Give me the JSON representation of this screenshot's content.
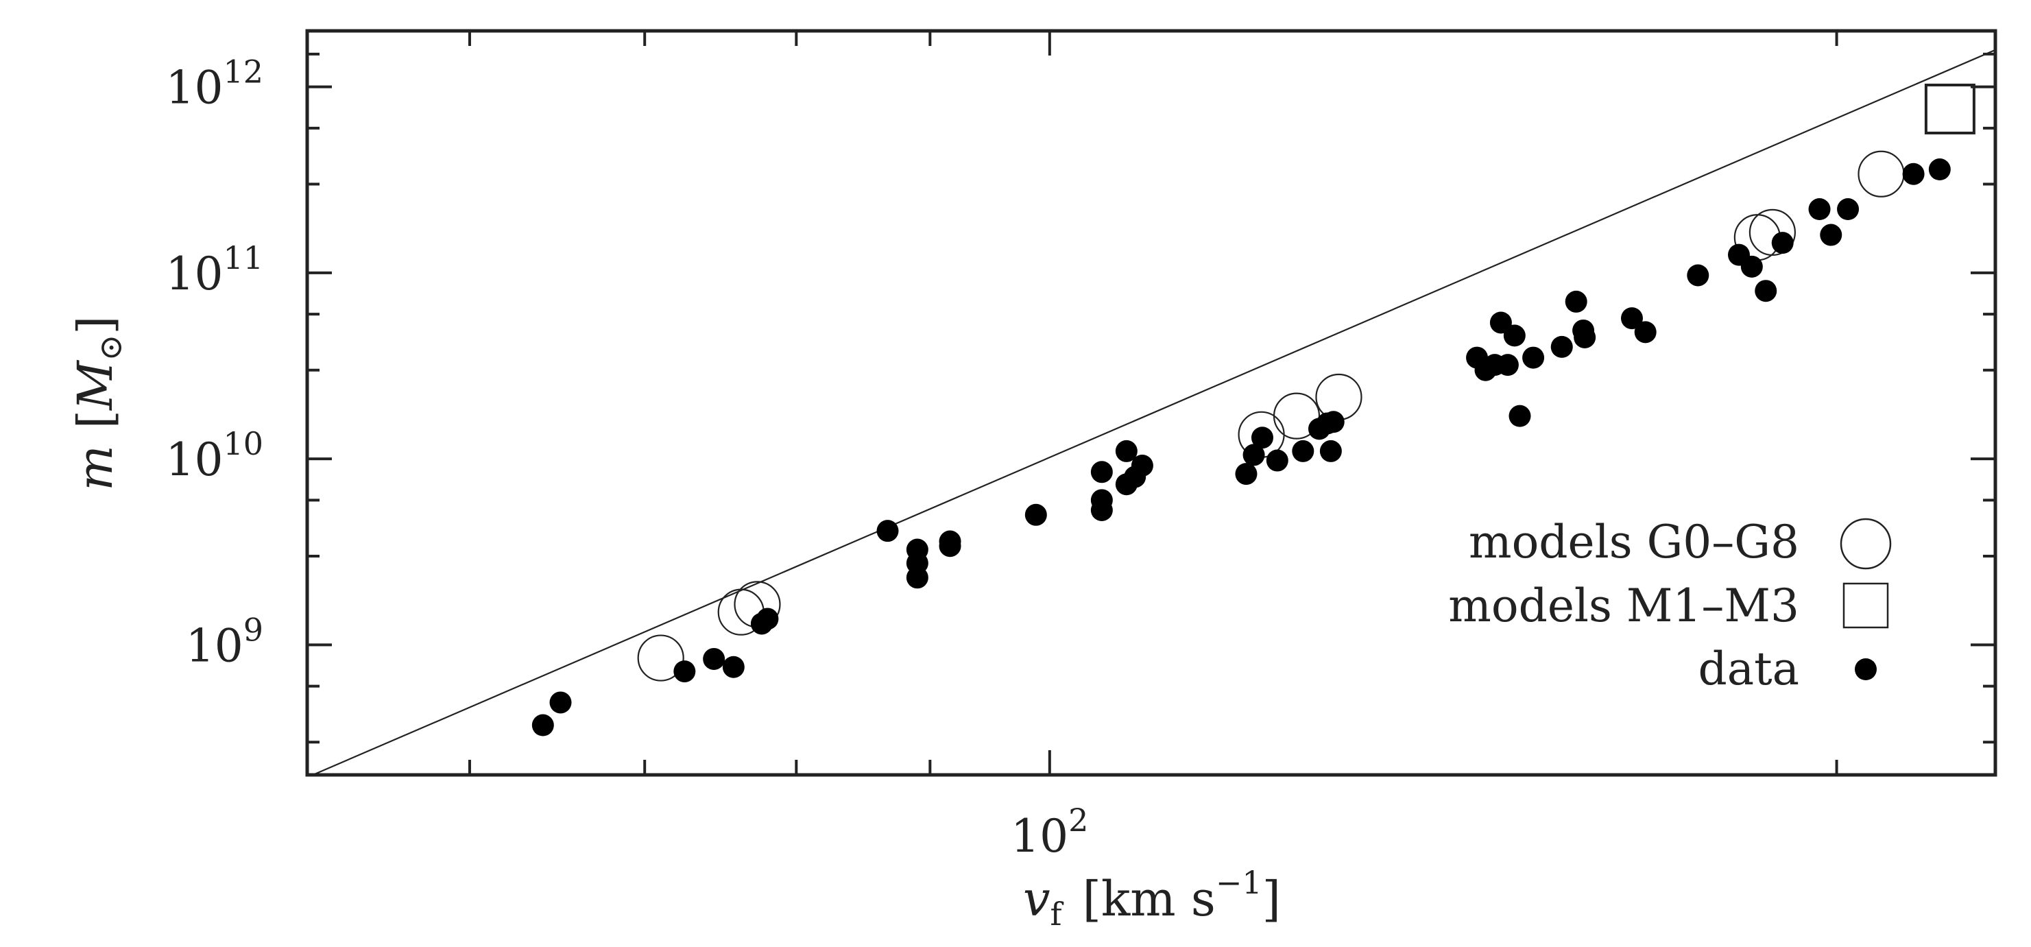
{
  "chart_data": {
    "type": "scatter",
    "scale": {
      "x": "log",
      "y": "log"
    },
    "xlim": [
      52,
      230
    ],
    "ylim": [
      200000000.0,
      2000000000000.0
    ],
    "xlabel": {
      "symbol": "v",
      "subscript": "f",
      "units_open": "[km s",
      "units_exp": "−1",
      "units_close": "]"
    },
    "ylabel": {
      "symbol": "m",
      "units_open": "[",
      "units_symbol": "M",
      "units_sub": "⊙",
      "units_close": "]"
    },
    "y_tick_labels": [
      {
        "value": 1000000000.0,
        "base": "10",
        "exp": "9"
      },
      {
        "value": 10000000000.0,
        "base": "10",
        "exp": "10"
      },
      {
        "value": 100000000000.0,
        "base": "10",
        "exp": "11"
      },
      {
        "value": 1000000000000.0,
        "base": "10",
        "exp": "12"
      }
    ],
    "x_tick_labels": [
      {
        "value": 100,
        "base": "10",
        "exp": "2"
      }
    ],
    "x_minor_ticks": [
      60,
      70,
      80,
      90,
      100,
      200
    ],
    "fit_line": {
      "x": [
        52,
        230
      ],
      "y": [
        194000000.0,
        1580000000000.0
      ]
    },
    "legend": [
      {
        "label": "models G0–G8",
        "marker": "open-circle"
      },
      {
        "label": "models M1–M3",
        "marker": "open-square"
      },
      {
        "label": "data",
        "marker": "filled-circle"
      }
    ],
    "series": [
      {
        "name": "models G0–G8",
        "marker": "open-circle",
        "points": [
          [
            71,
            850000000.0
          ],
          [
            76.2,
            1500000000.0
          ],
          [
            77.3,
            1650000000.0
          ],
          [
            120.5,
            13500000000.0
          ],
          [
            124.3,
            17000000000.0
          ],
          [
            129,
            21500000000.0
          ],
          [
            186.5,
            155000000000.0
          ],
          [
            189,
            165000000000.0
          ],
          [
            208,
            340000000000.0
          ]
        ]
      },
      {
        "name": "models M1–M3",
        "marker": "open-square",
        "points": [
          [
            221,
            760000000000.0
          ]
        ]
      },
      {
        "name": "data",
        "marker": "filled-circle",
        "points": [
          [
            64,
            370000000.0
          ],
          [
            65,
            490000000.0
          ],
          [
            72.5,
            720000000.0
          ],
          [
            74.4,
            840000000.0
          ],
          [
            75.7,
            760000000.0
          ],
          [
            77.6,
            1300000000.0
          ],
          [
            78,
            1380000000.0
          ],
          [
            86.7,
            4100000000.0
          ],
          [
            89,
            3250000000.0
          ],
          [
            89,
            2750000000.0
          ],
          [
            89,
            2300000000.0
          ],
          [
            91.6,
            3400000000.0
          ],
          [
            91.6,
            3600000000.0
          ],
          [
            98.8,
            5000000000.0
          ],
          [
            104.7,
            8500000000.0
          ],
          [
            104.7,
            6000000000.0
          ],
          [
            104.7,
            5300000000.0
          ],
          [
            107,
            11000000000.0
          ],
          [
            107,
            7300000000.0
          ],
          [
            107.8,
            8000000000.0
          ],
          [
            108.5,
            9200000000.0
          ],
          [
            118.9,
            8300000000.0
          ],
          [
            119.7,
            10500000000.0
          ],
          [
            120.6,
            13000000000.0
          ],
          [
            122.2,
            9800000000.0
          ],
          [
            125,
            11000000000.0
          ],
          [
            126.8,
            14500000000.0
          ],
          [
            127.7,
            15500000000.0
          ],
          [
            128.4,
            15800000000.0
          ],
          [
            128.1,
            11000000000.0
          ],
          [
            145.7,
            35000000000.0
          ],
          [
            146.8,
            30000000000.0
          ],
          [
            148,
            32000000000.0
          ],
          [
            148.8,
            54000000000.0
          ],
          [
            149.7,
            32000000000.0
          ],
          [
            150.6,
            46000000000.0
          ],
          [
            151.3,
            17000000000.0
          ],
          [
            153.1,
            35000000000.0
          ],
          [
            157,
            40000000000.0
          ],
          [
            159,
            70000000000.0
          ],
          [
            160,
            49000000000.0
          ],
          [
            160.2,
            45000000000.0
          ],
          [
            167,
            57000000000.0
          ],
          [
            169,
            48000000000.0
          ],
          [
            177,
            97000000000.0
          ],
          [
            183.5,
            125000000000.0
          ],
          [
            185.6,
            108000000000.0
          ],
          [
            187.9,
            80000000000.0
          ],
          [
            190.7,
            145000000000.0
          ],
          [
            197,
            220000000000.0
          ],
          [
            199,
            160000000000.0
          ],
          [
            202,
            220000000000.0
          ],
          [
            214,
            340000000000.0
          ],
          [
            219,
            360000000000.0
          ]
        ]
      }
    ]
  }
}
